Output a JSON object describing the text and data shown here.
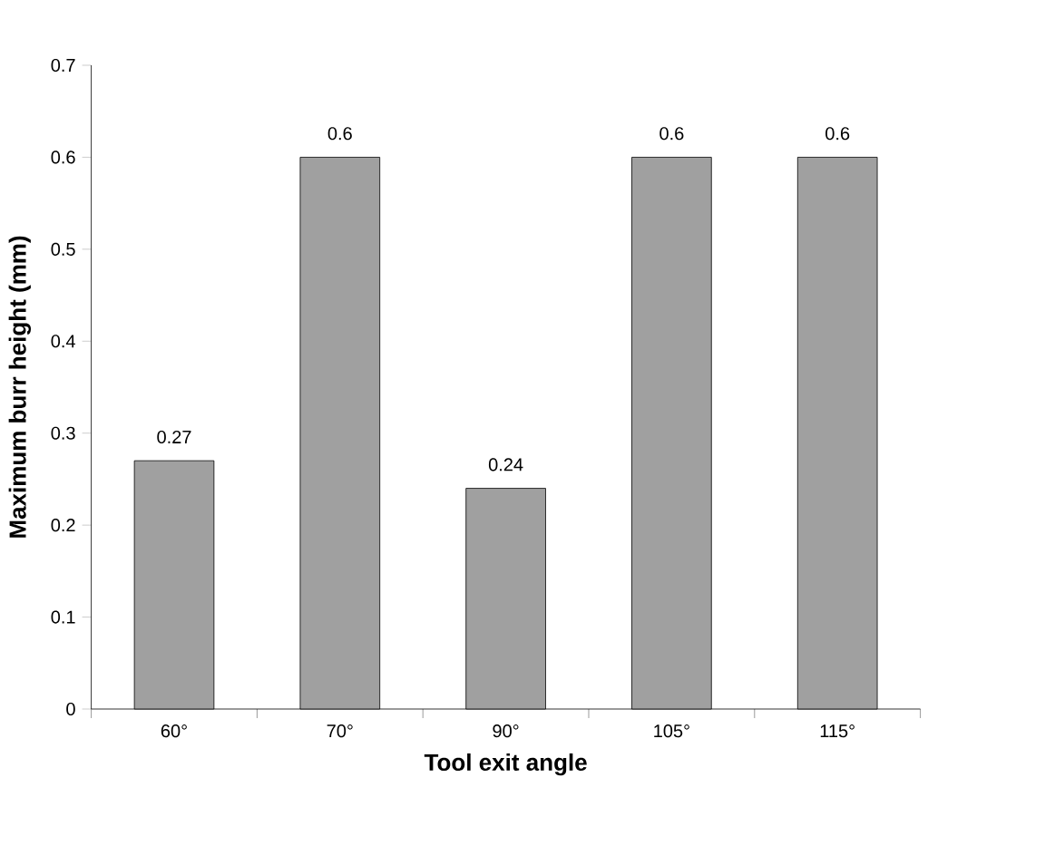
{
  "chart_data": {
    "type": "bar",
    "xlabel": "Tool exit angle",
    "ylabel": "Maximum burr height (mm)",
    "categories": [
      "60°",
      "70°",
      "90°",
      "105°",
      "115°"
    ],
    "values": [
      0.27,
      0.6,
      0.24,
      0.6,
      0.6
    ],
    "color": "#a0a0a0",
    "ylim": [
      0,
      0.7
    ],
    "yticks": [
      0,
      0.1,
      0.2,
      0.3,
      0.4,
      0.5,
      0.6,
      0.7
    ],
    "data_labels": true,
    "grid": false
  }
}
